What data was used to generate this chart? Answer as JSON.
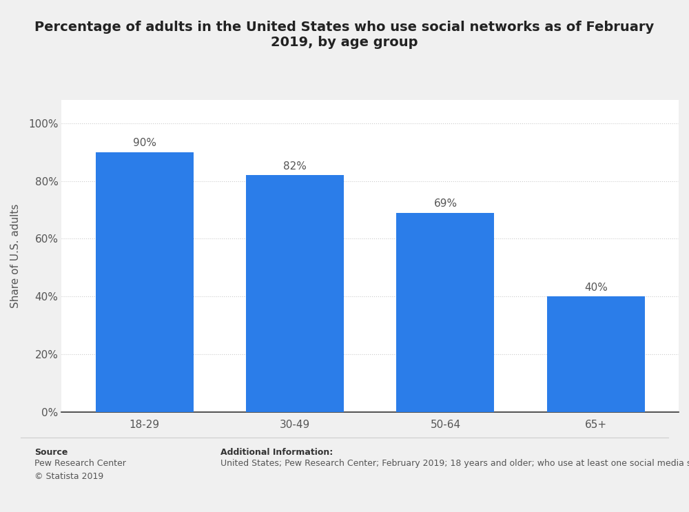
{
  "title": "Percentage of adults in the United States who use social networks as of February\n2019, by age group",
  "categories": [
    "18-29",
    "30-49",
    "50-64",
    "65+"
  ],
  "values": [
    0.9,
    0.82,
    0.69,
    0.4
  ],
  "value_labels": [
    "90%",
    "82%",
    "69%",
    "40%"
  ],
  "bar_color": "#2b7de9",
  "ylabel": "Share of U.S. adults",
  "yticks": [
    0.0,
    0.2,
    0.4,
    0.6,
    0.8,
    1.0
  ],
  "ytick_labels": [
    "0%",
    "20%",
    "40%",
    "60%",
    "80%",
    "100%"
  ],
  "outer_bg_color": "#f0f0f0",
  "plot_bg_color": "#ffffff",
  "title_fontsize": 14,
  "label_fontsize": 11,
  "tick_fontsize": 11,
  "source_label": "Source",
  "source_body": "Pew Research Center\n© Statista 2019",
  "additional_label": "Additional Information:",
  "additional_body": "United States; Pew Research Center; February 2019; 18 years and older; who use at least one social media site; Telepho",
  "footer_fontsize": 9,
  "grid_color": "#cccccc",
  "bar_width": 0.65
}
